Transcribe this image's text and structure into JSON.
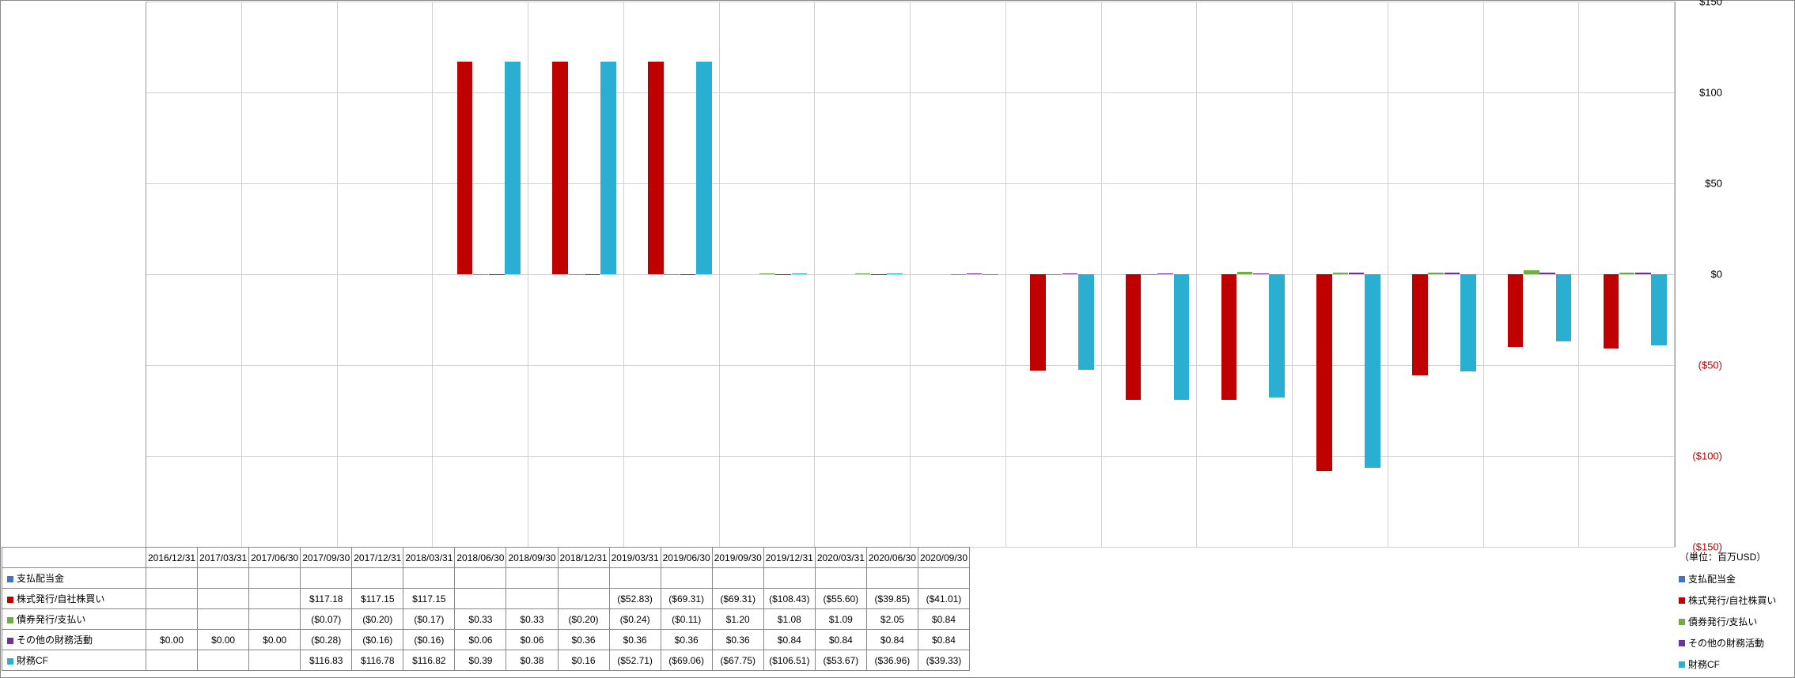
{
  "chart": {
    "type": "bar",
    "unit_label": "（単位：百万USD）",
    "background_color": "#ffffff",
    "grid_color": "#d0d0d0",
    "border_color": "#888888",
    "y_axis": {
      "min": -150,
      "max": 150,
      "step": 50,
      "ticks": [
        {
          "v": 150,
          "label": "$150"
        },
        {
          "v": 100,
          "label": "$100"
        },
        {
          "v": 50,
          "label": "$50"
        },
        {
          "v": 0,
          "label": "$0"
        },
        {
          "v": -50,
          "label": "($50)"
        },
        {
          "v": -100,
          "label": "($100)"
        },
        {
          "v": -150,
          "label": "($150)"
        }
      ],
      "neg_color": "#c00000",
      "fontsize": 13
    },
    "categories": [
      "2016/12/31",
      "2017/03/31",
      "2017/06/30",
      "2017/09/30",
      "2017/12/31",
      "2018/03/31",
      "2018/06/30",
      "2018/09/30",
      "2018/12/31",
      "2019/03/31",
      "2019/06/30",
      "2019/09/30",
      "2019/12/31",
      "2020/03/31",
      "2020/06/30",
      "2020/09/30"
    ],
    "series": [
      {
        "name": "支払配当金",
        "color": "#4472c4",
        "values": [
          null,
          null,
          null,
          null,
          null,
          null,
          null,
          null,
          null,
          null,
          null,
          null,
          null,
          null,
          null,
          null
        ],
        "display": [
          "",
          "",
          "",
          "",
          "",
          "",
          "",
          "",
          "",
          "",
          "",
          "",
          "",
          "",
          "",
          ""
        ]
      },
      {
        "name": "株式発行/自社株買い",
        "color": "#c00000",
        "values": [
          null,
          null,
          null,
          117.18,
          117.15,
          117.15,
          null,
          null,
          null,
          -52.83,
          -69.31,
          -69.31,
          -108.43,
          -55.6,
          -39.85,
          -41.01
        ],
        "display": [
          "",
          "",
          "",
          "$117.18",
          "$117.15",
          "$117.15",
          "",
          "",
          "",
          "($52.83)",
          "($69.31)",
          "($69.31)",
          "($108.43)",
          "($55.60)",
          "($39.85)",
          "($41.01)"
        ]
      },
      {
        "name": "債券発行/支払い",
        "color": "#70ad47",
        "values": [
          null,
          null,
          null,
          -0.07,
          -0.2,
          -0.17,
          0.33,
          0.33,
          -0.2,
          -0.24,
          -0.11,
          1.2,
          1.08,
          1.09,
          2.05,
          0.84
        ],
        "display": [
          "",
          "",
          "",
          "($0.07)",
          "($0.20)",
          "($0.17)",
          "$0.33",
          "$0.33",
          "($0.20)",
          "($0.24)",
          "($0.11)",
          "$1.20",
          "$1.08",
          "$1.09",
          "$2.05",
          "$0.84"
        ]
      },
      {
        "name": "その他の財務活動",
        "color": "#7030a0",
        "values": [
          0.0,
          0.0,
          0.0,
          -0.28,
          -0.16,
          -0.16,
          0.06,
          0.06,
          0.36,
          0.36,
          0.36,
          0.36,
          0.84,
          0.84,
          0.84,
          0.84
        ],
        "display": [
          "$0.00",
          "$0.00",
          "$0.00",
          "($0.28)",
          "($0.16)",
          "($0.16)",
          "$0.06",
          "$0.06",
          "$0.36",
          "$0.36",
          "$0.36",
          "$0.36",
          "$0.84",
          "$0.84",
          "$0.84",
          "$0.84"
        ]
      },
      {
        "name": "財務CF",
        "color": "#2aaed1",
        "values": [
          null,
          null,
          null,
          116.83,
          116.78,
          116.82,
          0.39,
          0.38,
          0.16,
          -52.71,
          -69.06,
          -67.75,
          -106.51,
          -53.67,
          -36.96,
          -39.33
        ],
        "display": [
          "",
          "",
          "",
          "$116.83",
          "$116.78",
          "$116.82",
          "$0.39",
          "$0.38",
          "$0.16",
          "($52.71)",
          "($69.06)",
          "($67.75)",
          "($106.51)",
          "($53.67)",
          "($36.96)",
          "($39.33)"
        ]
      }
    ],
    "bar_gap_outer_pct": 8,
    "bar_gap_inner_pct": 3
  }
}
